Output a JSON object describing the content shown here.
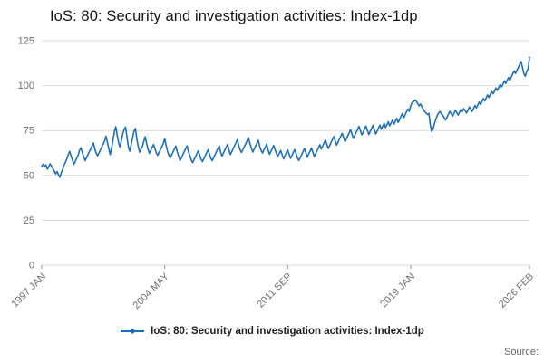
{
  "title": "IoS: 80: Security and investigation activities: Index-1dp",
  "legend": {
    "label": "IoS: 80: Security and investigation activities: Index-1dp"
  },
  "source_label": "Source:",
  "colors": {
    "line": "#1d70b8",
    "grid": "#d9d9d9",
    "axis_text": "#6e6e6e",
    "title_text": "#141414"
  },
  "chart_data": {
    "type": "line",
    "title": "IoS: 80: Security and investigation activities: Index-1dp",
    "xlabel": "",
    "ylabel": "",
    "ylim": [
      0,
      125
    ],
    "y_ticks": [
      0,
      25,
      50,
      75,
      100,
      125
    ],
    "x_tick_labels": [
      "1997 JAN",
      "2004 MAY",
      "2011 SEP",
      "2019 JAN",
      "2026 FEB"
    ],
    "x_tick_indices": [
      0,
      88,
      176,
      264,
      349
    ],
    "x_start": "1997 JAN",
    "x_end": "2026 FEB",
    "frequency": "monthly",
    "grid": "horizontal",
    "legend_position": "bottom",
    "series": [
      {
        "name": "IoS: 80: Security and investigation activities: Index-1dp",
        "values": [
          55.0,
          56.2,
          54.8,
          55.9,
          53.5,
          54.7,
          56.5,
          55.2,
          53.8,
          52.4,
          50.9,
          52.1,
          50.3,
          48.9,
          51.5,
          53.2,
          55.8,
          57.4,
          59.1,
          61.7,
          63.4,
          60.9,
          58.5,
          56.2,
          57.8,
          59.5,
          61.1,
          63.8,
          65.4,
          62.9,
          60.5,
          58.2,
          59.8,
          61.5,
          63.1,
          64.8,
          66.4,
          68.1,
          64.7,
          62.3,
          60.9,
          62.6,
          64.2,
          65.9,
          67.5,
          69.2,
          71.8,
          68.3,
          64.9,
          61.5,
          65.2,
          69.8,
          74.5,
          77.1,
          72.6,
          68.2,
          65.8,
          69.4,
          73.1,
          75.7,
          76.9,
          71.4,
          66.0,
          63.5,
          67.2,
          70.8,
          74.5,
          76.2,
          70.7,
          66.3,
          62.9,
          64.6,
          66.2,
          68.9,
          71.5,
          68.0,
          64.6,
          62.3,
          63.9,
          65.6,
          67.2,
          64.9,
          62.5,
          61.2,
          62.8,
          64.5,
          66.1,
          67.8,
          70.4,
          66.9,
          63.5,
          61.2,
          59.8,
          61.5,
          63.1,
          64.7,
          66.4,
          63.0,
          60.6,
          58.3,
          59.9,
          61.6,
          63.2,
          64.9,
          66.5,
          63.2,
          60.8,
          58.5,
          57.1,
          58.8,
          60.4,
          62.1,
          63.7,
          61.4,
          59.0,
          57.7,
          59.3,
          61.0,
          62.6,
          64.3,
          61.9,
          59.6,
          58.2,
          59.9,
          61.5,
          63.2,
          64.8,
          66.5,
          63.1,
          60.7,
          62.4,
          64.0,
          65.7,
          67.3,
          64.0,
          61.6,
          63.3,
          64.9,
          66.6,
          68.2,
          69.9,
          66.5,
          64.1,
          62.8,
          64.4,
          66.1,
          67.7,
          69.4,
          71.0,
          67.7,
          65.3,
          63.0,
          64.6,
          66.3,
          67.9,
          69.6,
          66.2,
          63.9,
          62.5,
          64.2,
          65.8,
          67.5,
          64.1,
          61.7,
          63.4,
          65.0,
          66.7,
          64.3,
          62.0,
          60.6,
          62.3,
          63.9,
          61.6,
          59.2,
          60.9,
          62.5,
          64.2,
          61.8,
          59.5,
          61.1,
          62.8,
          64.4,
          62.1,
          59.7,
          58.3,
          60.0,
          61.6,
          63.3,
          64.9,
          62.6,
          60.2,
          61.9,
          63.5,
          65.2,
          62.8,
          60.5,
          62.1,
          63.8,
          65.4,
          67.1,
          64.7,
          66.4,
          68.0,
          69.7,
          67.3,
          65.0,
          66.6,
          68.3,
          69.9,
          71.6,
          69.2,
          66.9,
          68.5,
          70.2,
          71.8,
          73.5,
          71.1,
          68.8,
          70.4,
          72.1,
          73.7,
          75.4,
          73.0,
          70.7,
          72.3,
          74.0,
          75.6,
          77.3,
          74.9,
          72.6,
          74.2,
          75.9,
          77.5,
          75.2,
          72.8,
          74.5,
          76.1,
          77.8,
          75.4,
          73.1,
          74.7,
          76.4,
          78.0,
          75.7,
          77.3,
          79.0,
          76.6,
          78.3,
          79.9,
          77.6,
          79.2,
          80.9,
          78.5,
          80.2,
          81.8,
          79.5,
          81.1,
          82.8,
          84.4,
          82.1,
          83.7,
          85.4,
          87.0,
          85.7,
          88.9,
          90.5,
          91.2,
          92.0,
          91.4,
          90.1,
          88.7,
          89.8,
          88.2,
          86.9,
          85.5,
          84.8,
          83.9,
          84.6,
          78.2,
          74.5,
          75.8,
          78.9,
          81.2,
          83.4,
          84.9,
          85.6,
          84.2,
          83.5,
          82.1,
          80.8,
          82.4,
          84.1,
          85.7,
          84.4,
          83.0,
          84.7,
          86.3,
          85.0,
          83.6,
          85.3,
          86.9,
          85.6,
          87.2,
          86.1,
          84.8,
          86.4,
          88.1,
          87.0,
          85.6,
          87.3,
          88.9,
          87.6,
          89.2,
          90.9,
          89.5,
          91.2,
          92.8,
          91.5,
          93.1,
          94.8,
          93.4,
          95.1,
          96.7,
          95.4,
          97.0,
          98.7,
          97.3,
          99.0,
          100.6,
          99.3,
          100.9,
          102.6,
          101.2,
          102.9,
          104.5,
          103.2,
          104.8,
          106.5,
          108.1,
          106.8,
          108.4,
          110.1,
          111.7,
          113.4,
          110.0,
          106.6,
          105.2,
          107.9,
          109.5,
          115.8
        ]
      }
    ]
  }
}
